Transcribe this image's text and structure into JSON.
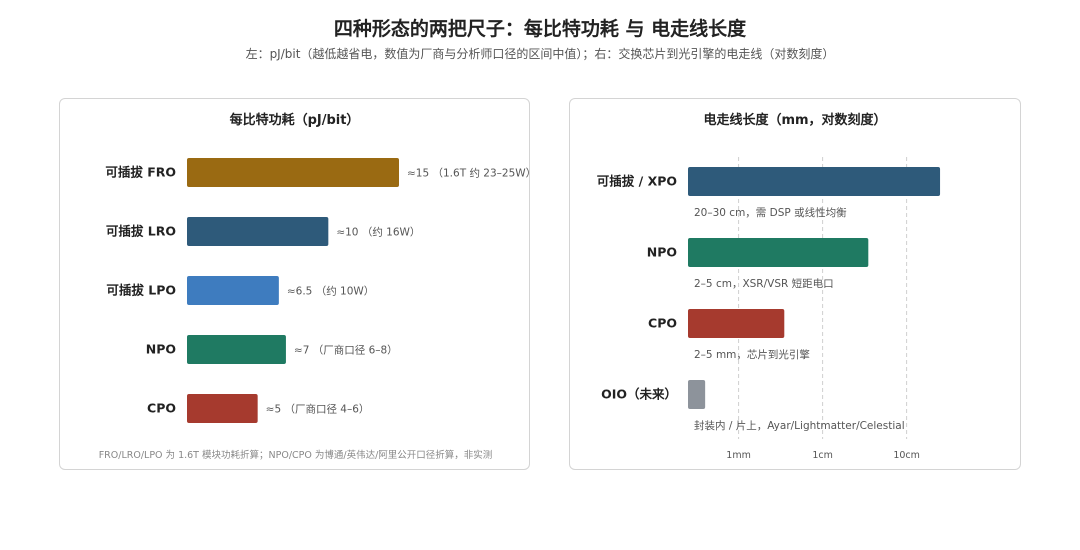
{
  "header": {
    "title": "四种形态的两把尺子：每比特功耗 与 电走线长度",
    "subtitle": "左：pJ/bit（越低越省电，数值为厂商与分析师口径的区间中值）；右：交换芯片到光引擎的电走线（对数刻度）"
  },
  "chart_data": [
    {
      "type": "bar",
      "orientation": "horizontal",
      "title": "每比特功耗（pJ/bit）",
      "categories": [
        "可插拔 FRO",
        "可插拔 LRO",
        "可插拔 LPO",
        "NPO",
        "CPO"
      ],
      "values": [
        15,
        10,
        6.5,
        7,
        5
      ],
      "value_labels": [
        "≈15 （1.6T 约 23–25W）",
        "≈10 （约 16W）",
        "≈6.5 （约 10W）",
        "≈7 （厂商口径 6–8）",
        "≈5 （厂商口径 4–6）"
      ],
      "colors": [
        "#9a6a12",
        "#2e5a7a",
        "#3e7cbf",
        "#1f7a62",
        "#a63a2e"
      ],
      "xlim": [
        0,
        15
      ],
      "grid": false,
      "footnote": "FRO/LRO/LPO 为 1.6T 模块功耗折算；NPO/CPO 为博通/英伟达/阿里公开口径折算，非实测"
    },
    {
      "type": "bar",
      "orientation": "horizontal",
      "title": "电走线长度（mm，对数刻度）",
      "x_scale": "log",
      "categories": [
        "可插拔 / XPO",
        "NPO",
        "CPO",
        "OIO（未来）"
      ],
      "values_mm": [
        250,
        35,
        3.5,
        0.4
      ],
      "descriptions": [
        "20–30 cm，需 DSP 或线性均衡",
        "2–5 cm，XSR/VSR 短距电口",
        "2–5 mm，芯片到光引擎",
        "封装内 / 片上，Ayar/Lightmatter/Celestial"
      ],
      "colors": [
        "#2e5a7a",
        "#1f7a62",
        "#a63a2e",
        "#8d939b"
      ],
      "xticks": [
        1,
        10,
        100
      ],
      "xtick_labels": [
        "1mm",
        "1cm",
        "10cm"
      ],
      "xlim_mm": [
        0.25,
        600
      ],
      "grid": true
    }
  ]
}
